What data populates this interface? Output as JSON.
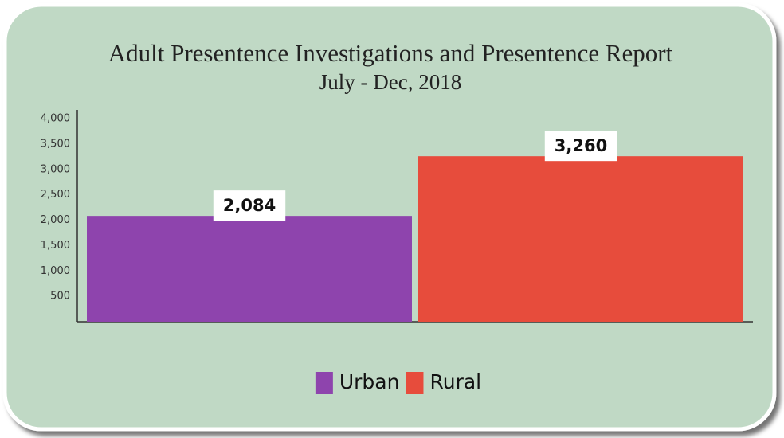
{
  "chart_data": {
    "type": "bar",
    "title": "Adult Presentence Investigations and Presentence Report",
    "subtitle": "July - Dec, 2018",
    "categories": [
      null
    ],
    "series": [
      {
        "name": "Urban",
        "color": "#8e44ad",
        "values": [
          2084
        ],
        "value_labels": [
          "2,084"
        ]
      },
      {
        "name": "Rural",
        "color": "#e74c3c",
        "values": [
          3260
        ],
        "value_labels": [
          "3,260"
        ]
      }
    ],
    "ylim": [
      0,
      4000
    ],
    "yticks": [
      500,
      {
        "value": 1000,
        "label": "1,000"
      },
      {
        "value": 1500,
        "label": "1,500"
      },
      {
        "value": 2000,
        "label": "2,000"
      },
      {
        "value": 2500,
        "label": "2,500"
      },
      {
        "value": 3000,
        "label": "3,000"
      },
      {
        "value": 3500,
        "label": "3,500"
      },
      {
        "value": 4000,
        "label": "4,000"
      }
    ],
    "grid": false,
    "legend": "bottom"
  }
}
